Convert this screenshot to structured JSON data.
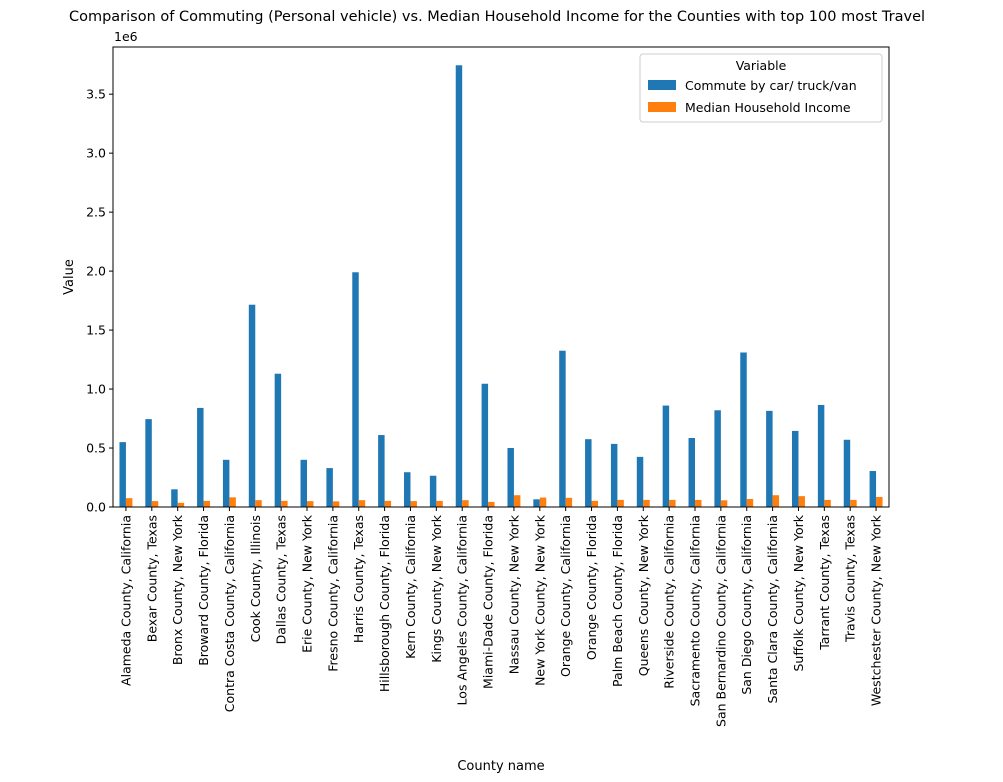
{
  "chart_data": {
    "type": "bar",
    "title": "Comparison of Commuting (Personal vehicle) vs. Median Household Income for the Counties with top 100 most Travel",
    "xlabel": "County name",
    "ylabel": "Value",
    "y_scale_label": "1e6",
    "ylim": [
      0,
      3900000
    ],
    "yticks": [
      "0.0",
      "0.5",
      "1.0",
      "1.5",
      "2.0",
      "2.5",
      "3.0",
      "3.5"
    ],
    "ytick_values": [
      0,
      500000,
      1000000,
      1500000,
      2000000,
      2500000,
      3000000,
      3500000
    ],
    "grid": false,
    "legend": {
      "title": "Variable",
      "placement": "upper right"
    },
    "categories": [
      "Alameda County, California",
      "Bexar County, Texas",
      "Bronx County, New York",
      "Broward County, Florida",
      "Contra Costa County, California",
      "Cook County, Illinois",
      "Dallas County, Texas",
      "Erie County, New York",
      "Fresno County, California",
      "Harris County, Texas",
      "Hillsborough County, Florida",
      "Kern County, California",
      "Kings County, New York",
      "Los Angeles County, California",
      "Miami-Dade County, Florida",
      "Nassau County, New York",
      "New York County, New York",
      "Orange County, California",
      "Orange County, Florida",
      "Palm Beach County, Florida",
      "Queens County, New York",
      "Riverside County, California",
      "Sacramento County, California",
      "San Bernardino County, California",
      "San Diego County, California",
      "Santa Clara County, California",
      "Suffolk County, New York",
      "Tarrant County, Texas",
      "Travis County, Texas",
      "Westchester County, New York"
    ],
    "series": [
      {
        "name": "Commute by car/ truck/van",
        "color": "#1f77b4",
        "values": [
          550000,
          745000,
          150000,
          840000,
          400000,
          1715000,
          1130000,
          400000,
          330000,
          1990000,
          610000,
          295000,
          265000,
          3745000,
          1045000,
          500000,
          65000,
          1325000,
          575000,
          535000,
          425000,
          860000,
          585000,
          820000,
          1310000,
          815000,
          645000,
          865000,
          570000,
          305000
        ]
      },
      {
        "name": "Median Household Income",
        "color": "#ff7f0e",
        "values": [
          75000,
          50000,
          35000,
          52000,
          82000,
          58000,
          52000,
          50000,
          48000,
          58000,
          52000,
          50000,
          52000,
          58000,
          43000,
          100000,
          80000,
          78000,
          52000,
          60000,
          60000,
          60000,
          60000,
          57000,
          68000,
          100000,
          92000,
          60000,
          60000,
          85000
        ]
      }
    ]
  }
}
